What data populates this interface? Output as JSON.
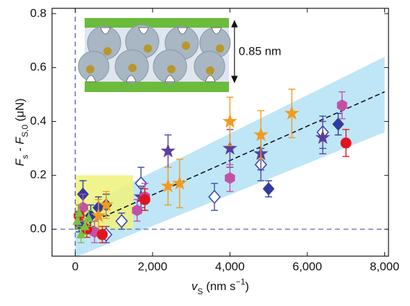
{
  "chart_data": {
    "type": "scatter",
    "xlabel": [
      {
        "text": "v",
        "style": "italic"
      },
      {
        "text": "S",
        "style": "sub"
      },
      {
        "text": " (nm s"
      },
      {
        "text": "−1",
        "style": "sup"
      },
      {
        "text": ")"
      }
    ],
    "ylabel": [
      {
        "text": "F",
        "style": "italic"
      },
      {
        "text": "s",
        "style": "sub"
      },
      {
        "text": " - "
      },
      {
        "text": "F",
        "style": "italic"
      },
      {
        "text": "S,0",
        "style": "sub"
      },
      {
        "text": " (μN)"
      }
    ],
    "xlim": [
      -600,
      8100
    ],
    "ylim": [
      -0.1,
      0.82
    ],
    "xticks": [
      0,
      {
        "value": 2000,
        "label": "2,000"
      },
      {
        "value": 4000,
        "label": "4,000"
      },
      {
        "value": 6000,
        "label": "6,000"
      },
      {
        "value": 8000,
        "label": "8,000"
      }
    ],
    "yticks": [
      {
        "value": 0,
        "label": "0.0"
      },
      0.2,
      0.4,
      0.6,
      0.8
    ],
    "band": {
      "x": [
        0,
        8000
      ],
      "upper": [
        0.07,
        0.64
      ],
      "lower": [
        -0.104,
        0.36
      ],
      "color": "#bfe6f7"
    },
    "highlight": {
      "x": [
        0,
        1500
      ],
      "y": [
        0,
        0.2
      ],
      "color": "#eef27a"
    },
    "fit_line": {
      "x": [
        0,
        8000
      ],
      "y": [
        0,
        0.51
      ],
      "color": "#111111"
    },
    "inset_label": "0.85 nm",
    "series": [
      {
        "marker": "diamond",
        "filled": true,
        "color": "#2f3d9c",
        "x": [
          200,
          600,
          800,
          5000,
          6800,
          100,
          400
        ],
        "y": [
          0.13,
          0.08,
          0.09,
          0.15,
          0.39,
          0.02,
          0.05
        ],
        "yerr": [
          0.05,
          0.04,
          0.04,
          0.03,
          0.04,
          0.03,
          0.04
        ]
      },
      {
        "marker": "diamond",
        "filled": false,
        "color": "#3b48b0",
        "x": [
          1200,
          1700,
          3600,
          4800,
          6400,
          800
        ],
        "y": [
          0.03,
          0.17,
          0.12,
          0.24,
          0.36,
          -0.02
        ],
        "yerr": [
          0.03,
          0.06,
          0.05,
          0.06,
          0.06,
          0.03
        ]
      },
      {
        "marker": "star",
        "filled": true,
        "color": "#5a3f9c",
        "x": [
          2400,
          4000,
          4800,
          6400,
          1700
        ],
        "y": [
          0.29,
          0.3,
          0.28,
          0.34,
          0.12
        ],
        "yerr": [
          0.06,
          0.07,
          0.06,
          0.06,
          0.04
        ]
      },
      {
        "marker": "star",
        "filled": true,
        "color": "#f29a1f",
        "x": [
          2400,
          2700,
          4000,
          4800,
          5600,
          800,
          600
        ],
        "y": [
          0.16,
          0.17,
          0.4,
          0.35,
          0.43,
          0.09,
          0.05
        ],
        "yerr": [
          0.07,
          0.09,
          0.09,
          0.09,
          0.09,
          0.05,
          0.06
        ]
      },
      {
        "marker": "hexagon",
        "filled": true,
        "color": "#c450a6",
        "x": [
          4000,
          6900,
          1600,
          200,
          500,
          1800
        ],
        "y": [
          0.19,
          0.46,
          0.07,
          0.08,
          -0.01,
          0.12
        ],
        "yerr": [
          0.05,
          0.05,
          0.04,
          0.05,
          0.04,
          0.05
        ]
      },
      {
        "marker": "circle",
        "filled": true,
        "color": "#e0141f",
        "x": [
          7000,
          1800,
          100,
          300,
          700
        ],
        "y": [
          0.32,
          0.11,
          0.05,
          0.0,
          -0.02
        ],
        "yerr": [
          0.05,
          0.04,
          0.04,
          0.03,
          0.03
        ]
      },
      {
        "marker": "triangle",
        "filled": true,
        "color": "#7bc143",
        "x": [
          50,
          100,
          150,
          250,
          350
        ],
        "y": [
          0.03,
          0.06,
          -0.02,
          0.01,
          0.04
        ],
        "yerr": [
          0.03,
          0.03,
          0.03,
          0.03,
          0.03
        ]
      }
    ]
  }
}
